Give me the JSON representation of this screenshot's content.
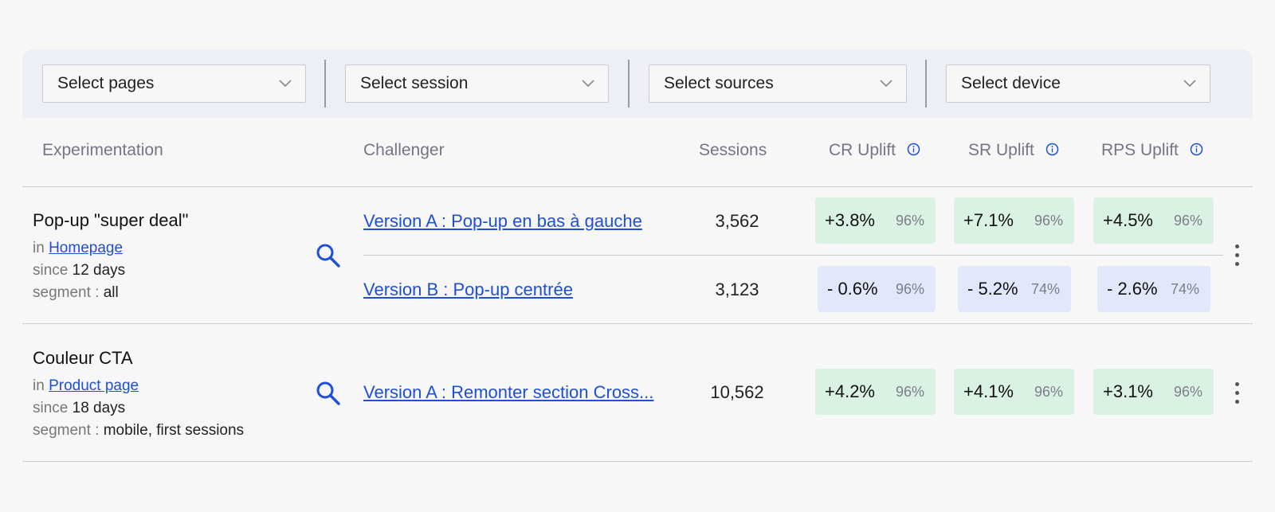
{
  "filters": {
    "pages": "Select pages",
    "session": "Select session",
    "sources": "Select sources",
    "device": "Select device"
  },
  "columns": {
    "experimentation": "Experimentation",
    "challenger": "Challenger",
    "sessions": "Sessions",
    "cr_uplift": "CR Uplift",
    "sr_uplift": "SR Uplift",
    "rps_uplift": "RPS Uplift"
  },
  "labels": {
    "in": "in",
    "since": "since",
    "segment": "segment :"
  },
  "experiments": [
    {
      "title": "Pop-up \"super deal\"",
      "page": "Homepage",
      "since": "12 days",
      "segment": "all",
      "variants": [
        {
          "name": "Version A : Pop-up en bas à gauche",
          "sessions": "3,562",
          "cr": {
            "value": "+3.8%",
            "confidence": "96%",
            "trend": "positive"
          },
          "sr": {
            "value": "+7.1%",
            "confidence": "96%",
            "trend": "positive"
          },
          "rps": {
            "value": "+4.5%",
            "confidence": "96%",
            "trend": "positive"
          }
        },
        {
          "name": "Version B : Pop-up centrée",
          "sessions": "3,123",
          "cr": {
            "value": "- 0.6%",
            "confidence": "96%",
            "trend": "negative"
          },
          "sr": {
            "value": "- 5.2%",
            "confidence": "74%",
            "trend": "negative"
          },
          "rps": {
            "value": "- 2.6%",
            "confidence": "74%",
            "trend": "negative"
          }
        }
      ]
    },
    {
      "title": "Couleur CTA",
      "page": "Product page",
      "since": "18 days",
      "segment": "mobile, first sessions",
      "variants": [
        {
          "name": "Version A : Remonter section Cross...",
          "sessions": "10,562",
          "cr": {
            "value": "+4.2%",
            "confidence": "96%",
            "trend": "positive"
          },
          "sr": {
            "value": "+4.1%",
            "confidence": "96%",
            "trend": "positive"
          },
          "rps": {
            "value": "+3.1%",
            "confidence": "96%",
            "trend": "positive"
          }
        }
      ]
    }
  ],
  "colors": {
    "link": "#1e4fd6",
    "positive_bg": "#daf2e4",
    "negative_bg": "#e3e7fb",
    "filter_bg": "#eeeff5",
    "header_text": "#747585"
  },
  "icons": {
    "dropdown": "chevron-down-icon",
    "info": "info-icon",
    "search": "search-icon",
    "more": "more-vertical-icon"
  }
}
